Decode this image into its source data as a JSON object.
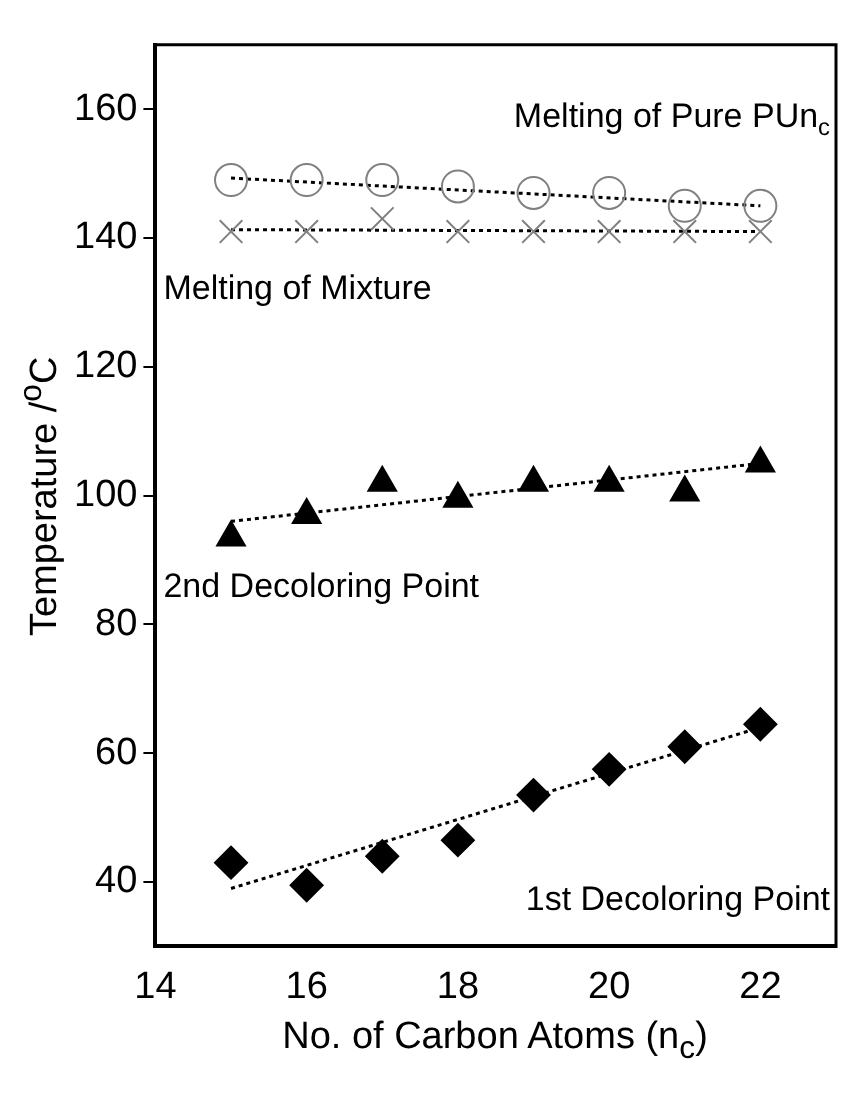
{
  "chart_data": {
    "type": "scatter",
    "xlabel": "No. of Carbon Atoms (n$_{c}$)",
    "ylabel": "Temperature /$^{o}$C",
    "xlim": [
      14,
      23
    ],
    "xticks": [
      14,
      16,
      18,
      20,
      22
    ],
    "ylim": [
      30,
      170
    ],
    "yticks": [
      40,
      60,
      80,
      100,
      120,
      140,
      160
    ],
    "grid": false,
    "legend": false,
    "series": [
      {
        "name": "Melting of Pure PUn$_{c}$",
        "type": "scatter",
        "marker": "circle",
        "color": "#808080",
        "x": [
          15,
          16,
          17,
          18,
          19,
          20,
          21,
          22
        ],
        "values": [
          149,
          149,
          149,
          148,
          147,
          147,
          145,
          145
        ]
      },
      {
        "type": "line",
        "marker": "none",
        "line_style": "dotted",
        "color": "#000000",
        "x": [
          15,
          22
        ],
        "values": [
          149.3,
          145
        ]
      },
      {
        "name": "Melting of Mixture",
        "type": "scatter",
        "marker": "cross",
        "color": "#808080",
        "x": [
          15,
          16,
          17,
          18,
          19,
          20,
          21,
          22
        ],
        "values": [
          141,
          141,
          143,
          141,
          141,
          141,
          141,
          141
        ]
      },
      {
        "type": "line",
        "marker": "none",
        "line_style": "dotted",
        "color": "#000000",
        "x": [
          15,
          22
        ],
        "values": [
          141.3,
          141
        ]
      },
      {
        "name": "2nd Decoloring Point",
        "type": "scatter",
        "marker": "triangle",
        "color": "#000000",
        "x": [
          15,
          16,
          17,
          18,
          19,
          20,
          21,
          22
        ],
        "values": [
          93.5,
          97,
          102,
          99.5,
          102,
          102,
          100.5,
          105
        ]
      },
      {
        "type": "line",
        "marker": "none",
        "line_style": "dotted",
        "color": "#000000",
        "x": [
          15,
          22
        ],
        "values": [
          96,
          105
        ]
      },
      {
        "name": "1st Decoloring Point",
        "type": "scatter",
        "marker": "diamond",
        "color": "#000000",
        "x": [
          15,
          16,
          17,
          18,
          19,
          20,
          21,
          22
        ],
        "values": [
          43,
          39.5,
          44,
          46.5,
          53.5,
          57.5,
          61,
          64.5
        ]
      },
      {
        "type": "line",
        "marker": "none",
        "line_style": "dotted",
        "color": "#000000",
        "x": [
          15,
          22
        ],
        "values": [
          39,
          64
        ]
      }
    ]
  }
}
